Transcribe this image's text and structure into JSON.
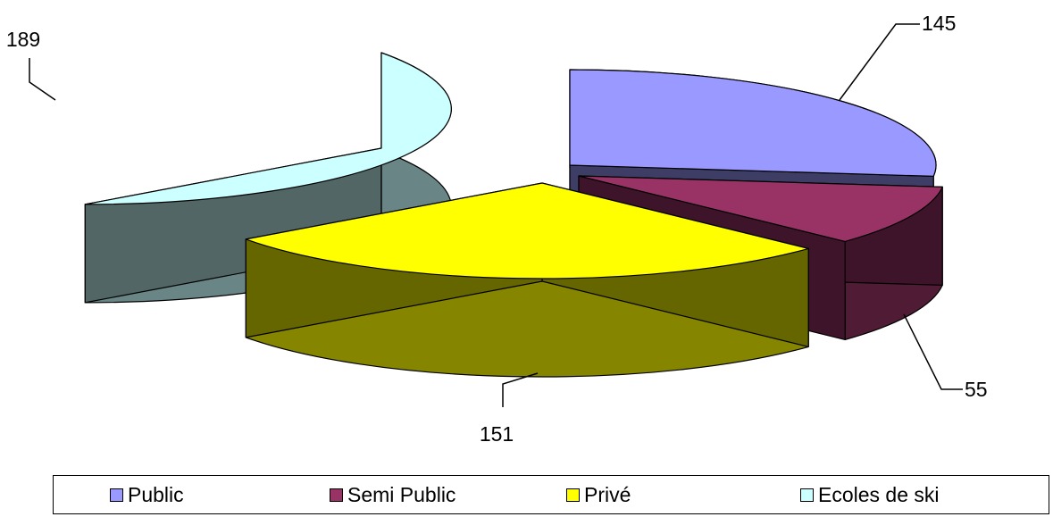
{
  "chart_data": {
    "type": "pie",
    "style": "3d-exploded",
    "categories": [
      "Public",
      "Semi Public",
      "Privé",
      "Ecoles de ski"
    ],
    "values": [
      145,
      55,
      151,
      189
    ],
    "colors": {
      "Public": "#9999ff",
      "Semi Public": "#993366",
      "Privé": "#ffff00",
      "Ecoles de ski": "#ccffff"
    },
    "data_labels": [
      "145",
      "55",
      "151",
      "189"
    ],
    "legend_position": "bottom",
    "title": ""
  }
}
